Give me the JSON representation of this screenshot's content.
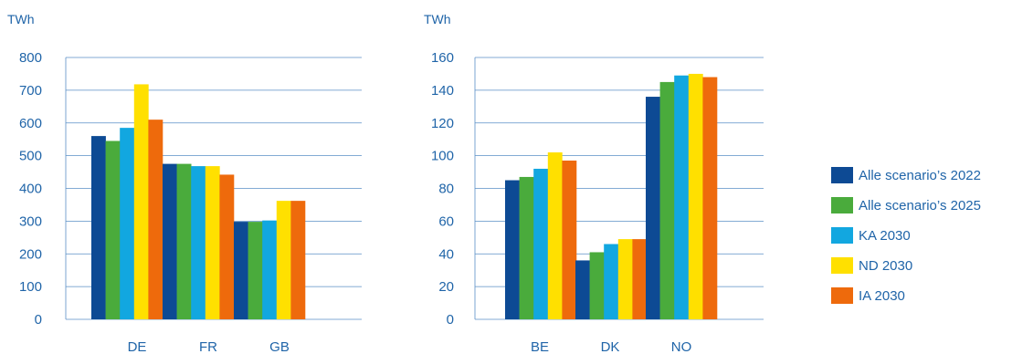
{
  "colors": {
    "axis_text": "#1f64a8",
    "gridline": "#5a8fc6"
  },
  "chart_data": [
    {
      "type": "bar",
      "unit_label": "TWh",
      "categories": [
        "DE",
        "FR",
        "GB"
      ],
      "ylim": [
        0,
        800
      ],
      "yticks": [
        0,
        100,
        200,
        300,
        400,
        500,
        600,
        700,
        800
      ],
      "grid": true,
      "series": [
        {
          "name": "Alle scenario’s 2022",
          "color": "#0d4a94",
          "values": [
            560,
            475,
            298
          ]
        },
        {
          "name": "Alle scenario’s 2025",
          "color": "#4aab3c",
          "values": [
            545,
            475,
            298
          ]
        },
        {
          "name": "KA 2030",
          "color": "#12a7e0",
          "values": [
            585,
            468,
            302
          ]
        },
        {
          "name": "ND 2030",
          "color": "#ffe000",
          "values": [
            718,
            468,
            362
          ]
        },
        {
          "name": "IA 2030",
          "color": "#ee6a0c",
          "values": [
            610,
            442,
            362
          ]
        }
      ]
    },
    {
      "type": "bar",
      "unit_label": "TWh",
      "categories": [
        "BE",
        "DK",
        "NO"
      ],
      "ylim": [
        0,
        160
      ],
      "yticks": [
        0,
        20,
        40,
        60,
        80,
        100,
        120,
        140,
        160
      ],
      "grid": true,
      "series": [
        {
          "name": "Alle scenario’s 2022",
          "color": "#0d4a94",
          "values": [
            85,
            36,
            136
          ]
        },
        {
          "name": "Alle scenario’s 2025",
          "color": "#4aab3c",
          "values": [
            87,
            41,
            145
          ]
        },
        {
          "name": "KA 2030",
          "color": "#12a7e0",
          "values": [
            92,
            46,
            149
          ]
        },
        {
          "name": "ND 2030",
          "color": "#ffe000",
          "values": [
            102,
            49,
            150
          ]
        },
        {
          "name": "IA 2030",
          "color": "#ee6a0c",
          "values": [
            97,
            49,
            148
          ]
        }
      ]
    }
  ],
  "legend": {
    "placement": "right",
    "items": [
      {
        "label": "Alle scenario’s 2022",
        "color": "#0d4a94"
      },
      {
        "label": "Alle scenario’s 2025",
        "color": "#4aab3c"
      },
      {
        "label": "KA 2030",
        "color": "#12a7e0"
      },
      {
        "label": "ND 2030",
        "color": "#ffe000"
      },
      {
        "label": "IA 2030",
        "color": "#ee6a0c"
      }
    ]
  }
}
